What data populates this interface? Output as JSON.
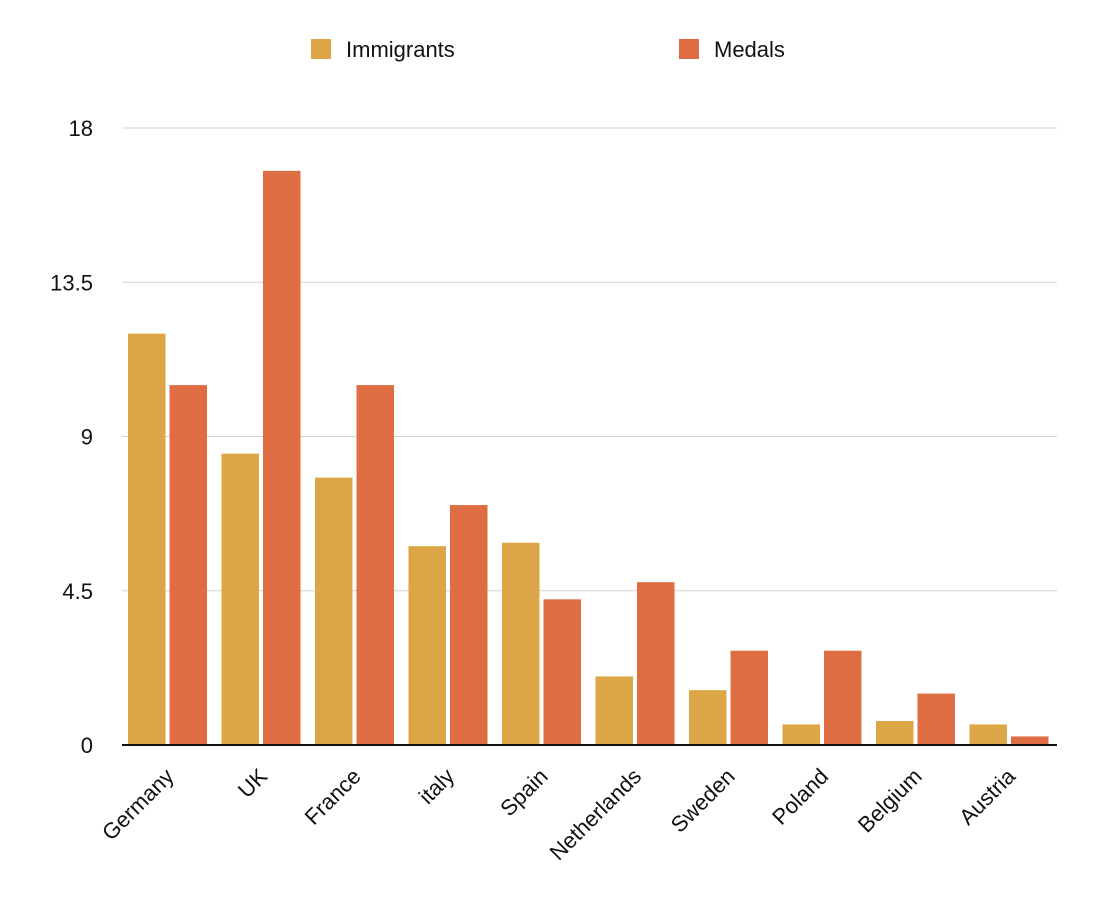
{
  "chart_data": {
    "type": "bar",
    "categories": [
      "Germany",
      "UK",
      "France",
      "italy",
      "Spain",
      "Netherlands",
      "Sweden",
      "Poland",
      "Belgium",
      "Austria"
    ],
    "series": [
      {
        "name": "Immigrants",
        "color": "#DCA546",
        "values": [
          12.0,
          8.5,
          7.8,
          5.8,
          5.9,
          2.0,
          1.6,
          0.6,
          0.7,
          0.6
        ]
      },
      {
        "name": "Medals",
        "color": "#DF6D43",
        "values": [
          10.5,
          16.75,
          10.5,
          7.0,
          4.25,
          4.75,
          2.75,
          2.75,
          1.5,
          0.25
        ]
      }
    ],
    "yticks": [
      "0",
      "4.5",
      "9",
      "13.5",
      "18"
    ],
    "ylim": [
      0,
      18
    ],
    "grid": true,
    "legend_position": "top"
  }
}
